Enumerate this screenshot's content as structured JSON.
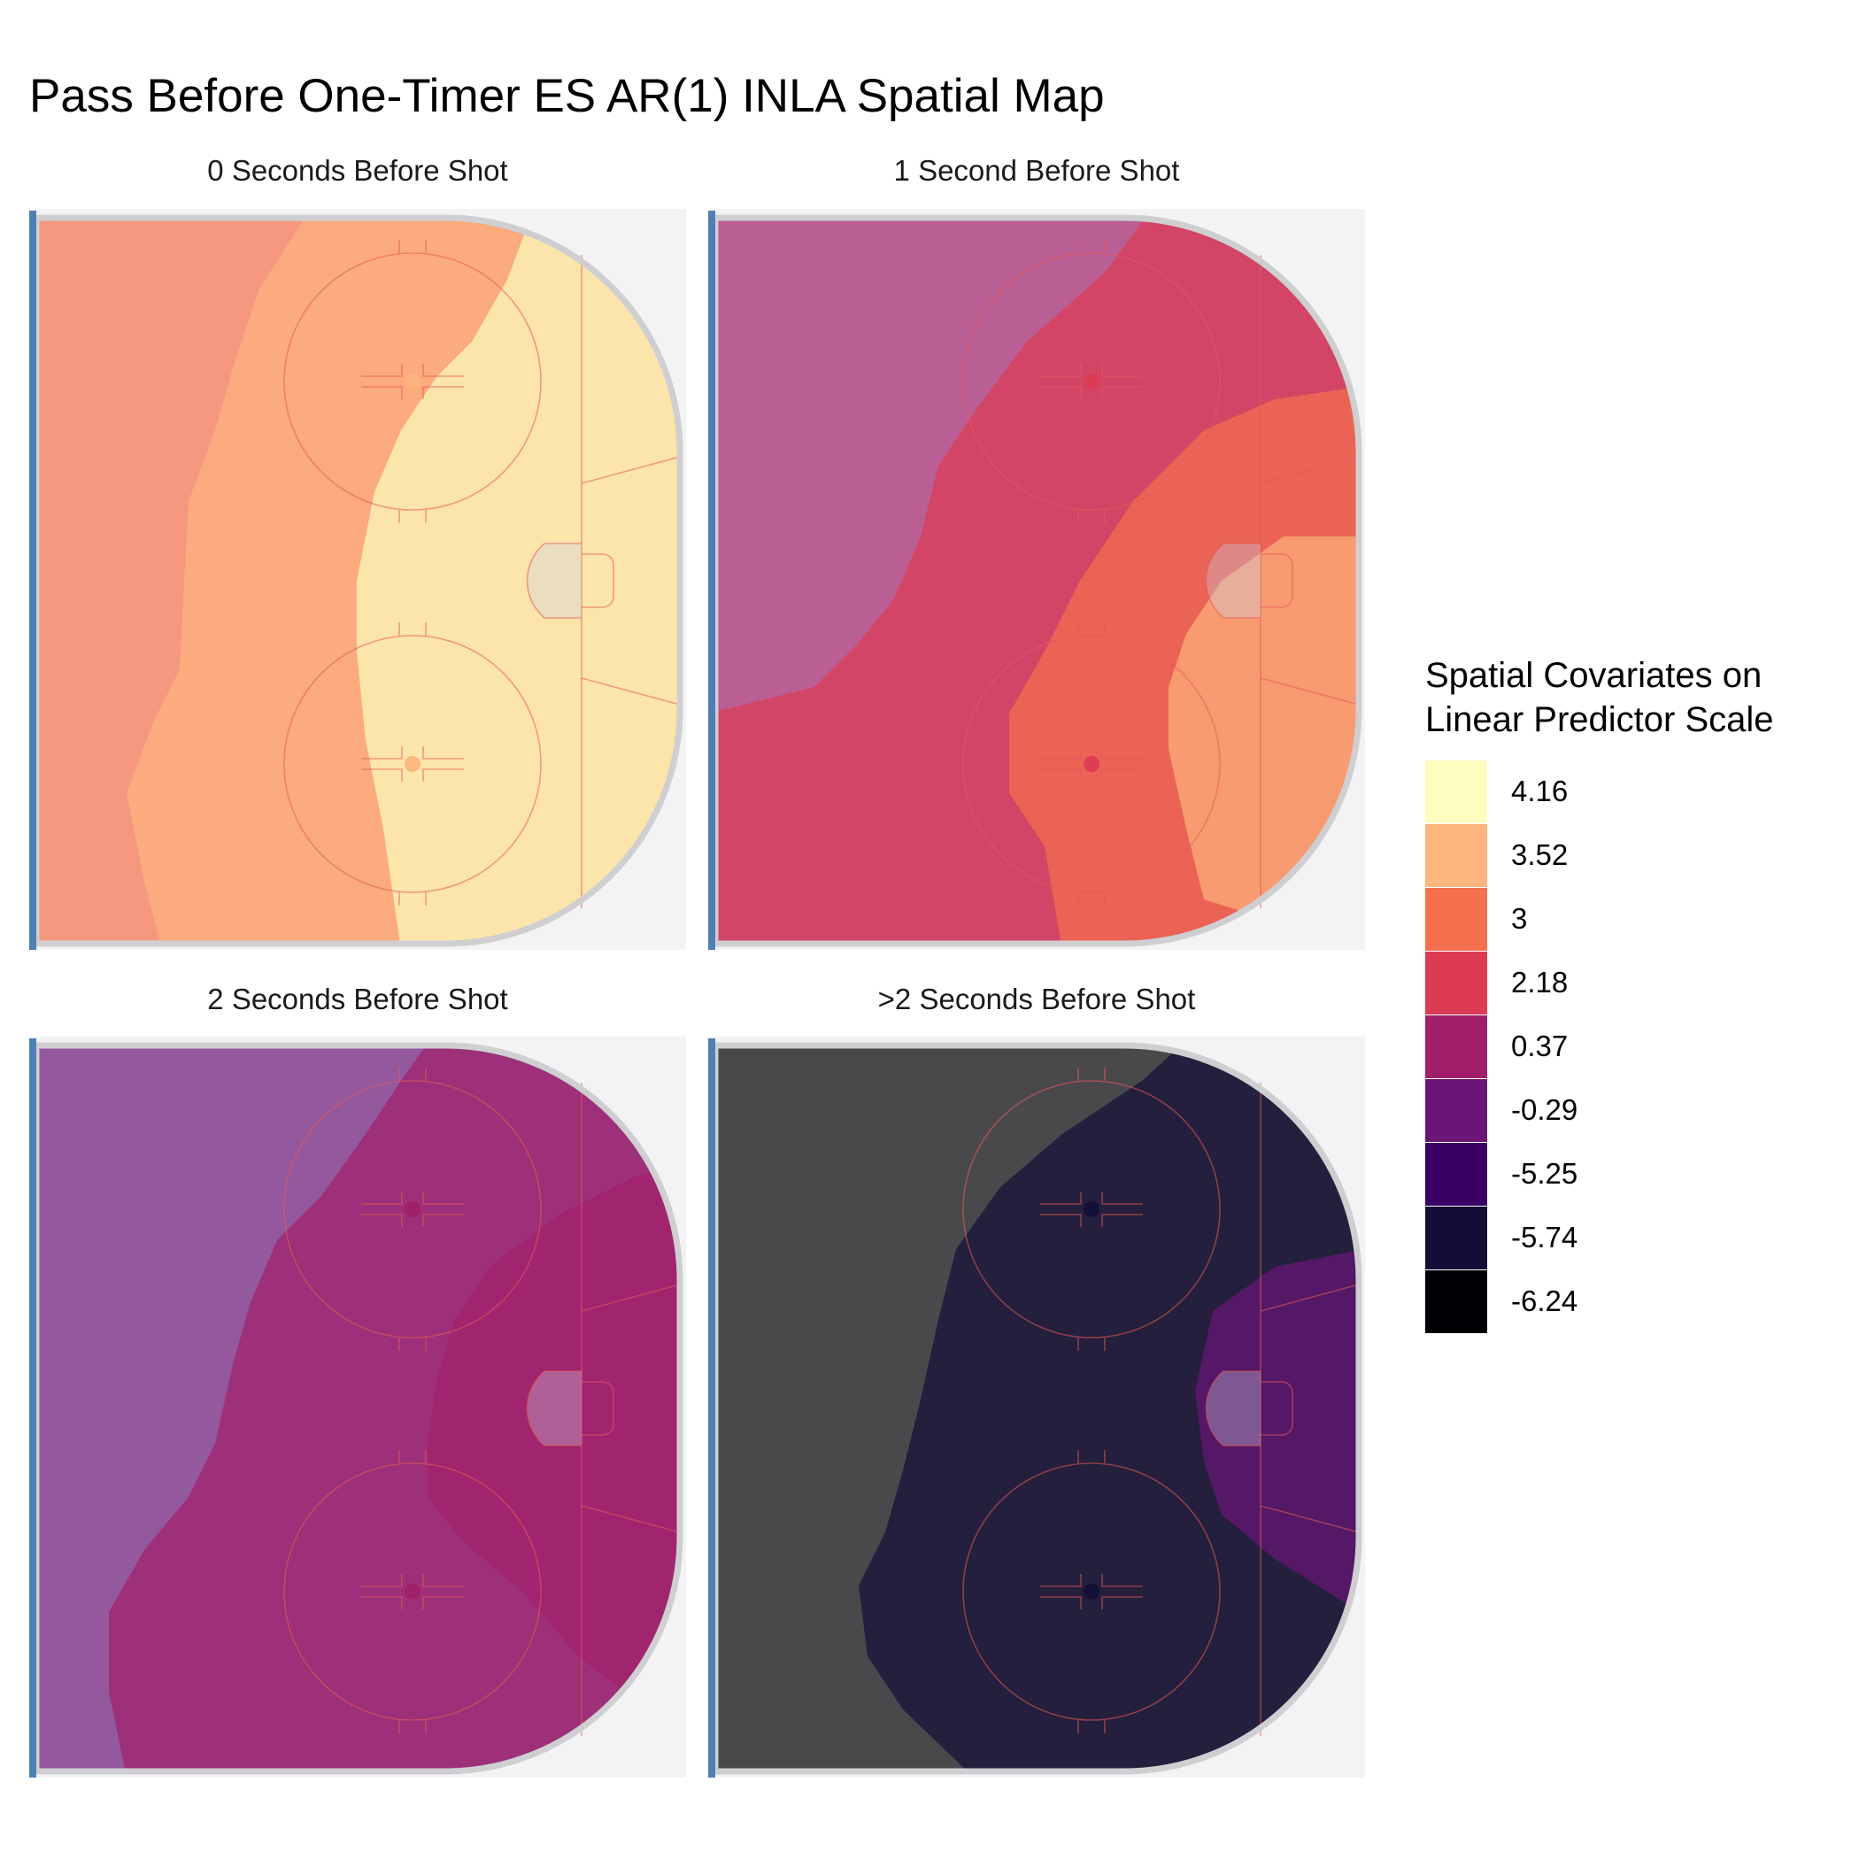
{
  "chart_data": {
    "type": "heatmap",
    "title": "Pass Before One-Timer ES AR(1) INLA Spatial Map",
    "legend": {
      "title_lines": [
        "Spatial Covariates on",
        "Linear Predictor Scale"
      ],
      "placement": "right",
      "bins": [
        {
          "label": "4.16",
          "color": "#fcfdbf"
        },
        {
          "label": "3.52",
          "color": "#fdb47d"
        },
        {
          "label": "3",
          "color": "#f4704f"
        },
        {
          "label": "2.18",
          "color": "#dd3a54"
        },
        {
          "label": "0.37",
          "color": "#a11f6a"
        },
        {
          "label": "-0.29",
          "color": "#6b1677"
        },
        {
          "label": "-5.25",
          "color": "#3a0066"
        },
        {
          "label": "-5.74",
          "color": "#140e36"
        },
        {
          "label": "-6.24",
          "color": "#000004"
        }
      ]
    },
    "panels": [
      {
        "label": "0 Seconds Before Shot",
        "levels": [
          "3",
          "3.52",
          "4.16"
        ]
      },
      {
        "label": "1 Second Before Shot",
        "levels": [
          "0.37",
          "2.18",
          "3",
          "3.52"
        ]
      },
      {
        "label": "2 Seconds Before Shot",
        "levels": [
          "-0.29",
          "0.37",
          "0.37"
        ]
      },
      {
        "label": ">2 Seconds Before Shot",
        "levels": [
          "-6.24",
          "-5.74",
          "-0.29"
        ]
      }
    ]
  }
}
